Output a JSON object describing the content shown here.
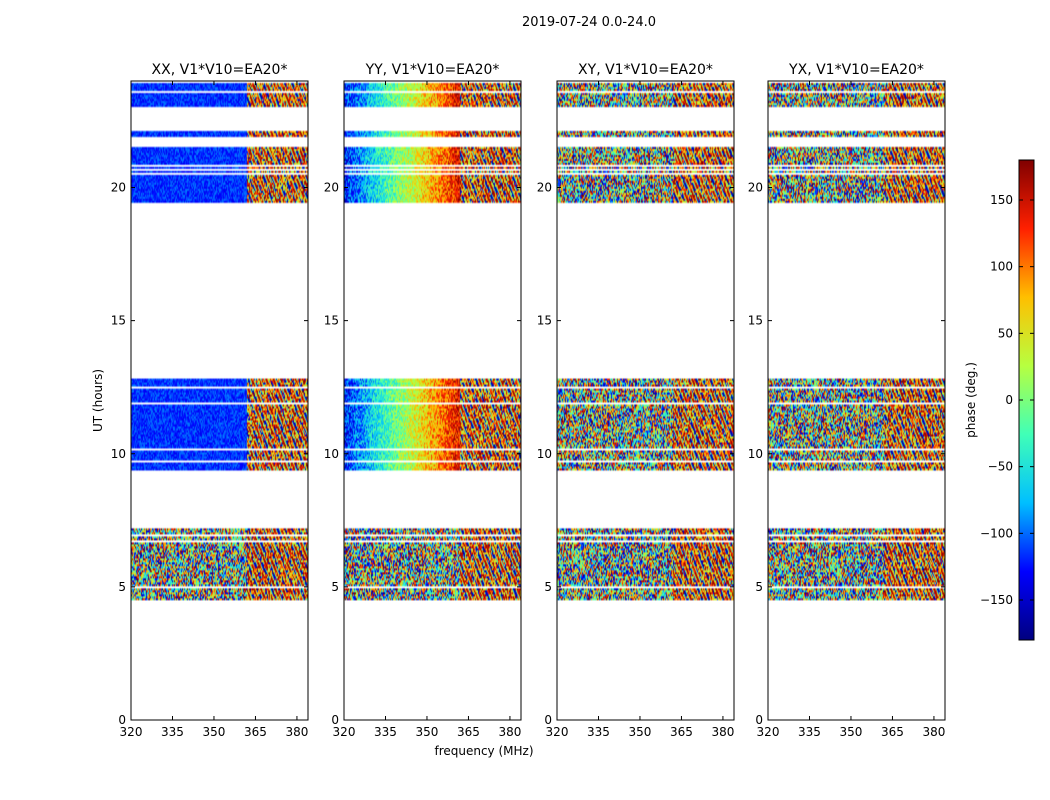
{
  "figure_title": "2019-07-24 0.0-24.0",
  "chart_data": [
    {
      "type": "heatmap",
      "title": "XX, V1*V10=EA20*",
      "xlabel": "",
      "ylabel": "UT (hours)",
      "xlim": [
        320,
        384
      ],
      "ylim": [
        0,
        24
      ],
      "xticks": [
        320,
        335,
        350,
        365,
        380
      ],
      "yticks": [
        0,
        5,
        10,
        15,
        20
      ],
      "mode": "blue",
      "data_blocks_ut": [
        [
          4.5,
          7.2
        ],
        [
          9.4,
          12.8
        ],
        [
          19.4,
          20.6
        ],
        [
          20.7,
          21.5
        ],
        [
          21.9,
          22.1
        ],
        [
          23.0,
          24.0
        ]
      ]
    },
    {
      "type": "heatmap",
      "title": "YY, V1*V10=EA20*",
      "xlabel": "frequency (MHz)",
      "ylabel": "",
      "xlim": [
        320,
        384
      ],
      "ylim": [
        0,
        24
      ],
      "xticks": [
        320,
        335,
        350,
        365,
        380
      ],
      "yticks": [
        0,
        5,
        10,
        15,
        20
      ],
      "mode": "gradient",
      "data_blocks_ut": [
        [
          4.5,
          7.2
        ],
        [
          9.4,
          12.8
        ],
        [
          19.4,
          20.6
        ],
        [
          20.7,
          21.5
        ],
        [
          21.9,
          22.1
        ],
        [
          23.0,
          24.0
        ]
      ]
    },
    {
      "type": "heatmap",
      "title": "XY, V1*V10=EA20*",
      "xlabel": "",
      "ylabel": "",
      "xlim": [
        320,
        384
      ],
      "ylim": [
        0,
        24
      ],
      "xticks": [
        320,
        335,
        350,
        365,
        380
      ],
      "yticks": [
        0,
        5,
        10,
        15,
        20
      ],
      "mode": "noise",
      "data_blocks_ut": [
        [
          4.5,
          7.2
        ],
        [
          9.4,
          12.8
        ],
        [
          19.4,
          20.6
        ],
        [
          20.7,
          21.5
        ],
        [
          21.9,
          22.1
        ],
        [
          23.0,
          24.0
        ]
      ]
    },
    {
      "type": "heatmap",
      "title": "YX, V1*V10=EA20*",
      "xlabel": "",
      "ylabel": "",
      "xlim": [
        320,
        384
      ],
      "ylim": [
        0,
        24
      ],
      "xticks": [
        320,
        335,
        350,
        365,
        380
      ],
      "yticks": [
        0,
        5,
        10,
        15,
        20
      ],
      "mode": "noise",
      "data_blocks_ut": [
        [
          4.5,
          7.2
        ],
        [
          9.4,
          12.8
        ],
        [
          19.4,
          20.6
        ],
        [
          20.7,
          21.5
        ],
        [
          21.9,
          22.1
        ],
        [
          23.0,
          24.0
        ]
      ]
    }
  ],
  "colorbar": {
    "label": "phase (deg.)",
    "min": -180,
    "max": 180,
    "ticks": [
      -150,
      -100,
      -50,
      0,
      50,
      100,
      150
    ],
    "tick_labels": [
      "−150",
      "−100",
      "−50",
      "0",
      "50",
      "100",
      "150"
    ],
    "colormap": [
      "#000080",
      "#0000ff",
      "#00bfff",
      "#40ffb7",
      "#b7ff40",
      "#ffbf00",
      "#ff2000",
      "#800000"
    ]
  }
}
